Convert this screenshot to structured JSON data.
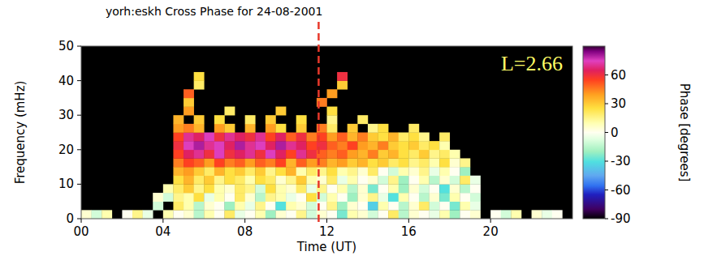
{
  "chart_data": {
    "type": "heatmap",
    "title": "yorh:eskh Cross Phase for 24-08-2001",
    "x_label": "Time (UT)",
    "y_label": "Frequency (mHz)",
    "annotation": "L=2.66",
    "xlim": [
      0,
      24
    ],
    "ylim": [
      0,
      50
    ],
    "xticks": [
      {
        "value": 0,
        "label": "00"
      },
      {
        "value": 4,
        "label": "04"
      },
      {
        "value": 8,
        "label": "08"
      },
      12,
      16,
      20
    ],
    "yticks": [
      0,
      10,
      20,
      30,
      40,
      50
    ],
    "x_bins": [
      0,
      0.5,
      1,
      1.5,
      2,
      2.5,
      3,
      3.5,
      4,
      4.5,
      5,
      5.5,
      6,
      6.5,
      7,
      7.5,
      8,
      8.5,
      9,
      9.5,
      10,
      10.5,
      11,
      11.5,
      12,
      12.5,
      13,
      13.5,
      14,
      14.5,
      15,
      15.5,
      16,
      16.5,
      17,
      17.5,
      18,
      18.5,
      19,
      19.5,
      20,
      20.5,
      21,
      21.5,
      22,
      22.5,
      23,
      23.5,
      24
    ],
    "y_bins": [
      0,
      2.5,
      5,
      7.5,
      10,
      12.5,
      15,
      17.5,
      20,
      22.5,
      25,
      27.5,
      30,
      32.5,
      35,
      37.5,
      40,
      42.5,
      45,
      47.5,
      50
    ],
    "cells": [
      [
        5,
        -10,
        10,
        null,
        0,
        15,
        -5,
        null,
        10,
        0,
        5,
        -15,
        10,
        0,
        20,
        -5,
        0,
        10,
        -20,
        5,
        0,
        15,
        -10,
        5,
        0,
        -25,
        10,
        5,
        -10,
        0,
        20,
        -15,
        5,
        0,
        -5,
        10,
        -20,
        0,
        5,
        null,
        0,
        -10,
        10,
        null,
        5,
        -5,
        0,
        null
      ],
      [
        null,
        null,
        null,
        null,
        null,
        null,
        null,
        -10,
        null,
        20,
        10,
        -15,
        5,
        0,
        -20,
        10,
        -5,
        15,
        0,
        -30,
        10,
        5,
        -10,
        0,
        15,
        -20,
        5,
        0,
        -35,
        10,
        0,
        -15,
        5,
        20,
        -10,
        0,
        -25,
        10,
        -5,
        null,
        null,
        null,
        null,
        null,
        null,
        null,
        null,
        null
      ],
      [
        null,
        null,
        null,
        null,
        null,
        null,
        null,
        5,
        -10,
        15,
        10,
        25,
        -5,
        10,
        0,
        20,
        5,
        -15,
        15,
        10,
        -5,
        0,
        25,
        -10,
        10,
        0,
        -20,
        5,
        15,
        -5,
        -30,
        10,
        0,
        -15,
        5,
        -25,
        10,
        0,
        -10,
        null,
        null,
        null,
        null,
        null,
        null,
        null,
        null,
        null
      ],
      [
        null,
        null,
        null,
        null,
        null,
        null,
        null,
        null,
        10,
        20,
        30,
        15,
        25,
        10,
        5,
        20,
        15,
        -10,
        25,
        10,
        5,
        20,
        -5,
        15,
        0,
        10,
        -15,
        5,
        -25,
        0,
        10,
        -20,
        5,
        -10,
        0,
        -30,
        5,
        -15,
        0,
        null,
        null,
        null,
        null,
        null,
        null,
        null,
        null,
        null
      ],
      [
        null,
        null,
        null,
        null,
        null,
        null,
        null,
        null,
        null,
        25,
        35,
        20,
        30,
        15,
        25,
        20,
        10,
        25,
        20,
        5,
        15,
        30,
        10,
        5,
        20,
        -5,
        10,
        0,
        5,
        -10,
        15,
        -20,
        0,
        10,
        -15,
        5,
        -10,
        20,
        -5,
        null,
        null,
        null,
        null,
        null,
        null,
        null,
        null,
        null
      ],
      [
        null,
        null,
        null,
        null,
        null,
        null,
        null,
        null,
        null,
        35,
        40,
        30,
        20,
        35,
        25,
        30,
        20,
        30,
        15,
        25,
        35,
        10,
        20,
        15,
        25,
        10,
        15,
        5,
        20,
        0,
        -10,
        10,
        5,
        15,
        -5,
        10,
        0,
        -20,
        null,
        null,
        null,
        null,
        null,
        null,
        null,
        null,
        null,
        null
      ],
      [
        null,
        null,
        null,
        null,
        null,
        null,
        null,
        null,
        null,
        45,
        55,
        50,
        40,
        55,
        45,
        50,
        40,
        50,
        45,
        55,
        35,
        50,
        40,
        45,
        35,
        40,
        30,
        35,
        25,
        30,
        20,
        25,
        15,
        20,
        10,
        25,
        5,
        15,
        null,
        null,
        null,
        null,
        null,
        null,
        null,
        null,
        null,
        null
      ],
      [
        null,
        null,
        null,
        null,
        null,
        null,
        null,
        null,
        null,
        55,
        65,
        70,
        60,
        75,
        60,
        65,
        70,
        60,
        75,
        65,
        55,
        70,
        60,
        50,
        45,
        50,
        40,
        35,
        45,
        30,
        35,
        25,
        20,
        30,
        15,
        20,
        10,
        null,
        null,
        null,
        null,
        null,
        null,
        null,
        null,
        null,
        null,
        null
      ],
      [
        null,
        null,
        null,
        null,
        null,
        null,
        null,
        null,
        null,
        60,
        75,
        80,
        70,
        75,
        65,
        80,
        70,
        75,
        65,
        80,
        70,
        65,
        55,
        60,
        50,
        45,
        55,
        40,
        35,
        45,
        30,
        25,
        30,
        20,
        25,
        10,
        null,
        null,
        null,
        null,
        null,
        null,
        null,
        null,
        null,
        null,
        null,
        null
      ],
      [
        null,
        null,
        null,
        null,
        null,
        null,
        null,
        null,
        null,
        55,
        70,
        65,
        75,
        60,
        70,
        65,
        60,
        70,
        55,
        65,
        50,
        60,
        45,
        55,
        40,
        50,
        35,
        45,
        30,
        25,
        35,
        20,
        25,
        15,
        null,
        20,
        null,
        null,
        null,
        null,
        null,
        null,
        null,
        null,
        null,
        null,
        null,
        null
      ],
      [
        null,
        null,
        null,
        null,
        null,
        null,
        null,
        null,
        null,
        40,
        45,
        35,
        null,
        40,
        30,
        null,
        35,
        null,
        40,
        25,
        null,
        30,
        null,
        45,
        20,
        null,
        30,
        null,
        15,
        25,
        null,
        null,
        20,
        null,
        null,
        null,
        null,
        null,
        null,
        null,
        null,
        null,
        null,
        null,
        null,
        null,
        null,
        null
      ],
      [
        null,
        null,
        null,
        null,
        null,
        null,
        null,
        null,
        null,
        35,
        null,
        30,
        null,
        25,
        null,
        null,
        20,
        null,
        30,
        null,
        null,
        25,
        null,
        null,
        15,
        null,
        null,
        20,
        null,
        null,
        null,
        null,
        null,
        null,
        null,
        null,
        null,
        null,
        null,
        null,
        null,
        null,
        null,
        null,
        null,
        null,
        null,
        null
      ],
      [
        null,
        null,
        null,
        null,
        null,
        null,
        null,
        null,
        null,
        null,
        40,
        null,
        null,
        null,
        20,
        null,
        null,
        null,
        null,
        30,
        null,
        null,
        null,
        null,
        25,
        null,
        null,
        null,
        null,
        null,
        null,
        null,
        null,
        null,
        null,
        null,
        null,
        null,
        null,
        null,
        null,
        null,
        null,
        null,
        null,
        null,
        null,
        null
      ],
      [
        null,
        null,
        null,
        null,
        null,
        null,
        null,
        null,
        null,
        null,
        30,
        null,
        null,
        null,
        null,
        null,
        null,
        null,
        null,
        null,
        null,
        null,
        null,
        45,
        null,
        null,
        null,
        null,
        null,
        null,
        null,
        null,
        null,
        null,
        null,
        null,
        null,
        null,
        null,
        null,
        null,
        null,
        null,
        null,
        null,
        null,
        null,
        null
      ],
      [
        null,
        null,
        null,
        null,
        null,
        null,
        null,
        null,
        null,
        null,
        50,
        null,
        null,
        null,
        null,
        null,
        null,
        null,
        null,
        null,
        null,
        null,
        null,
        null,
        40,
        null,
        null,
        null,
        null,
        null,
        null,
        null,
        null,
        null,
        null,
        null,
        null,
        null,
        null,
        null,
        null,
        null,
        null,
        null,
        null,
        null,
        null,
        null
      ],
      [
        null,
        null,
        null,
        null,
        null,
        null,
        null,
        null,
        null,
        null,
        null,
        20,
        null,
        null,
        null,
        null,
        null,
        null,
        null,
        null,
        null,
        null,
        null,
        null,
        null,
        30,
        null,
        null,
        null,
        null,
        null,
        null,
        null,
        null,
        null,
        null,
        null,
        null,
        null,
        null,
        null,
        null,
        null,
        null,
        null,
        null,
        null,
        null
      ],
      [
        null,
        null,
        null,
        null,
        null,
        null,
        null,
        null,
        null,
        null,
        null,
        25,
        null,
        null,
        null,
        null,
        null,
        null,
        null,
        null,
        null,
        null,
        null,
        null,
        null,
        60,
        null,
        null,
        null,
        null,
        null,
        null,
        null,
        null,
        null,
        null,
        null,
        null,
        null,
        null,
        null,
        null,
        null,
        null,
        null,
        null,
        null,
        null
      ],
      [
        null,
        null,
        null,
        null,
        null,
        null,
        null,
        null,
        null,
        null,
        null,
        null,
        null,
        null,
        null,
        null,
        null,
        null,
        null,
        null,
        null,
        null,
        null,
        null,
        null,
        null,
        null,
        null,
        null,
        null,
        null,
        null,
        null,
        null,
        null,
        null,
        null,
        null,
        null,
        null,
        null,
        null,
        null,
        null,
        null,
        null,
        null,
        null
      ],
      [
        null,
        null,
        null,
        null,
        null,
        null,
        null,
        null,
        null,
        null,
        null,
        null,
        null,
        null,
        null,
        null,
        null,
        null,
        null,
        null,
        null,
        null,
        null,
        null,
        null,
        null,
        null,
        null,
        null,
        null,
        null,
        null,
        null,
        null,
        null,
        null,
        null,
        null,
        null,
        null,
        null,
        null,
        null,
        null,
        null,
        null,
        null,
        null
      ],
      [
        null,
        null,
        null,
        null,
        null,
        null,
        null,
        null,
        null,
        null,
        null,
        null,
        null,
        null,
        null,
        null,
        null,
        null,
        null,
        null,
        null,
        null,
        null,
        null,
        null,
        null,
        null,
        null,
        null,
        null,
        null,
        null,
        null,
        null,
        null,
        null,
        null,
        null,
        null,
        null,
        null,
        null,
        null,
        null,
        null,
        null,
        null,
        null
      ]
    ],
    "colorbar": {
      "label": "Phase [degrees]",
      "range": [
        -90,
        90
      ],
      "ticks": [
        60,
        30,
        0,
        -30,
        -60,
        -90
      ]
    },
    "markers": [
      {
        "x": 11.6,
        "color": "#e8382a",
        "line_style": "dashed"
      }
    ]
  }
}
